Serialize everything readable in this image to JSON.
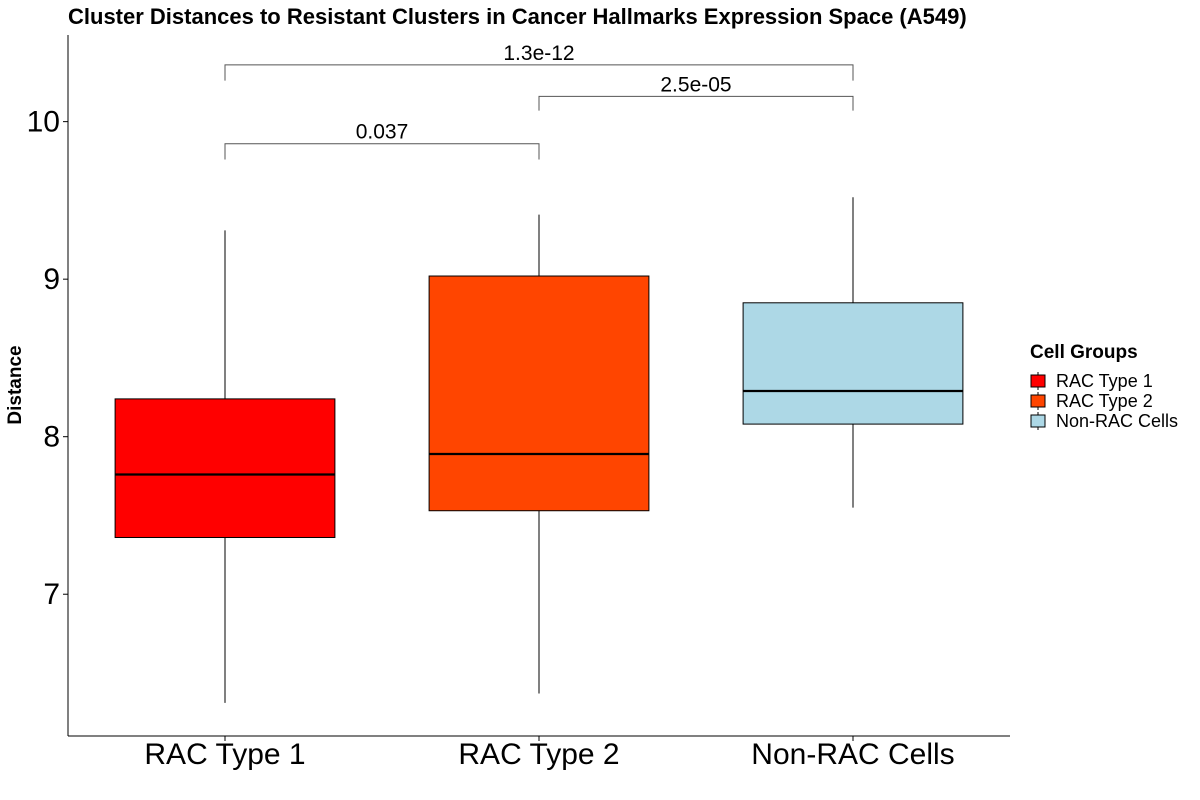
{
  "chart_data": {
    "type": "box",
    "title": "Cluster Distances to Resistant Clusters in Cancer Hallmarks Expression Space (A549)",
    "xlabel": "",
    "ylabel": "Distance",
    "ylim": [
      6.1,
      10.55
    ],
    "yticks": [
      7,
      8,
      9,
      10
    ],
    "grid": false,
    "legend": {
      "title": "Cell Groups",
      "position": "right",
      "entries": [
        "RAC Type 1",
        "RAC Type 2",
        "Non-RAC Cells"
      ]
    },
    "categories": [
      "RAC Type 1",
      "RAC Type 2",
      "Non-RAC Cells"
    ],
    "colors": [
      "#ff0000",
      "#ff4500",
      "#add8e6"
    ],
    "boxes": [
      {
        "min": 6.31,
        "q1": 7.36,
        "median": 7.76,
        "q3": 8.24,
        "max": 9.31
      },
      {
        "min": 6.37,
        "q1": 7.53,
        "median": 7.89,
        "q3": 9.02,
        "max": 9.41
      },
      {
        "min": 7.55,
        "q1": 8.08,
        "median": 8.29,
        "q3": 8.85,
        "max": 9.52
      }
    ],
    "comparisons": [
      {
        "from": 0,
        "to": 2,
        "label": "1.3e-12",
        "y": 10.36,
        "tip": 10.26
      },
      {
        "from": 1,
        "to": 2,
        "label": "2.5e-05",
        "y": 10.16,
        "tip": 10.07
      },
      {
        "from": 0,
        "to": 1,
        "label": "0.037",
        "y": 9.86,
        "tip": 9.76
      }
    ]
  }
}
